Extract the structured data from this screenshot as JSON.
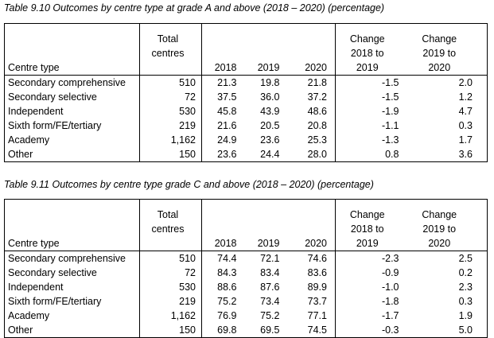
{
  "tables": [
    {
      "caption": "Table 9.10 Outcomes by centre type at grade A and above (2018 – 2020) (percentage)",
      "headers": {
        "centre_type": "Centre type",
        "total_line1": "Total",
        "total_line2": "centres",
        "y2018": "2018",
        "y2019": "2019",
        "y2020": "2020",
        "chg1_line1": "Change",
        "chg1_line2": "2018 to",
        "chg1_line3": "2019",
        "chg2_line1": "Change",
        "chg2_line2": "2019 to",
        "chg2_line3": "2020"
      },
      "rows": [
        {
          "type": "Secondary comprehensive",
          "total": "510",
          "y2018": "21.3",
          "y2019": "19.8",
          "y2020": "21.8",
          "chg1": "-1.5",
          "chg2": "2.0"
        },
        {
          "type": "Secondary selective",
          "total": "72",
          "y2018": "37.5",
          "y2019": "36.0",
          "y2020": "37.2",
          "chg1": "-1.5",
          "chg2": "1.2"
        },
        {
          "type": "Independent",
          "total": "530",
          "y2018": "45.8",
          "y2019": "43.9",
          "y2020": "48.6",
          "chg1": "-1.9",
          "chg2": "4.7"
        },
        {
          "type": "Sixth form/FE/tertiary",
          "total": "219",
          "y2018": "21.6",
          "y2019": "20.5",
          "y2020": "20.8",
          "chg1": "-1.1",
          "chg2": "0.3"
        },
        {
          "type": "Academy",
          "total": "1,162",
          "y2018": "24.9",
          "y2019": "23.6",
          "y2020": "25.3",
          "chg1": "-1.3",
          "chg2": "1.7"
        },
        {
          "type": "Other",
          "total": "150",
          "y2018": "23.6",
          "y2019": "24.4",
          "y2020": "28.0",
          "chg1": "0.8",
          "chg2": "3.6"
        }
      ]
    },
    {
      "caption": "Table 9.11 Outcomes by centre type grade C and above (2018 – 2020) (percentage)",
      "headers": {
        "centre_type": "Centre type",
        "total_line1": "Total",
        "total_line2": "centres",
        "y2018": "2018",
        "y2019": "2019",
        "y2020": "2020",
        "chg1_line1": "Change",
        "chg1_line2": "2018 to",
        "chg1_line3": "2019",
        "chg2_line1": "Change",
        "chg2_line2": "2019 to",
        "chg2_line3": "2020"
      },
      "rows": [
        {
          "type": "Secondary comprehensive",
          "total": "510",
          "y2018": "74.4",
          "y2019": "72.1",
          "y2020": "74.6",
          "chg1": "-2.3",
          "chg2": "2.5"
        },
        {
          "type": "Secondary selective",
          "total": "72",
          "y2018": "84.3",
          "y2019": "83.4",
          "y2020": "83.6",
          "chg1": "-0.9",
          "chg2": "0.2"
        },
        {
          "type": "Independent",
          "total": "530",
          "y2018": "88.6",
          "y2019": "87.6",
          "y2020": "89.9",
          "chg1": "-1.0",
          "chg2": "2.3"
        },
        {
          "type": "Sixth form/FE/tertiary",
          "total": "219",
          "y2018": "75.2",
          "y2019": "73.4",
          "y2020": "73.7",
          "chg1": "-1.8",
          "chg2": "0.3"
        },
        {
          "type": "Academy",
          "total": "1,162",
          "y2018": "76.9",
          "y2019": "75.2",
          "y2020": "77.1",
          "chg1": "-1.7",
          "chg2": "1.9"
        },
        {
          "type": "Other",
          "total": "150",
          "y2018": "69.8",
          "y2019": "69.5",
          "y2020": "74.5",
          "chg1": "-0.3",
          "chg2": "5.0"
        }
      ]
    }
  ]
}
